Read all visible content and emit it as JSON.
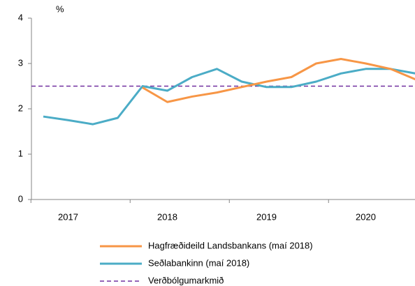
{
  "chart_data": {
    "type": "line",
    "y_axis_label": "%",
    "categories": [
      null,
      null,
      null,
      null,
      null,
      null,
      null,
      null,
      null,
      null,
      null,
      null,
      null,
      null,
      null,
      null
    ],
    "x_group_labels": [
      "2017",
      "2018",
      "2019",
      "2020"
    ],
    "ylim": [
      0,
      4
    ],
    "yticks": [
      0,
      1,
      2,
      3,
      4
    ],
    "series": [
      {
        "name": "Hagfræðideild Landsbankans (maí 2018)",
        "color": "#f79646",
        "values": [
          null,
          null,
          null,
          null,
          2.47,
          2.15,
          2.27,
          2.36,
          2.48,
          2.6,
          2.7,
          3.0,
          3.1,
          3.0,
          2.88,
          2.65
        ]
      },
      {
        "name": "Seðlabankinn (maí 2018)",
        "color": "#4bacc6",
        "values": [
          1.83,
          1.75,
          1.66,
          1.8,
          2.5,
          2.4,
          2.7,
          2.88,
          2.6,
          2.48,
          2.48,
          2.6,
          2.78,
          2.88,
          2.88,
          2.78
        ]
      }
    ],
    "reference_line": {
      "name": "Verðbólgumarkmið",
      "value": 2.5,
      "color": "#7030a0"
    }
  }
}
